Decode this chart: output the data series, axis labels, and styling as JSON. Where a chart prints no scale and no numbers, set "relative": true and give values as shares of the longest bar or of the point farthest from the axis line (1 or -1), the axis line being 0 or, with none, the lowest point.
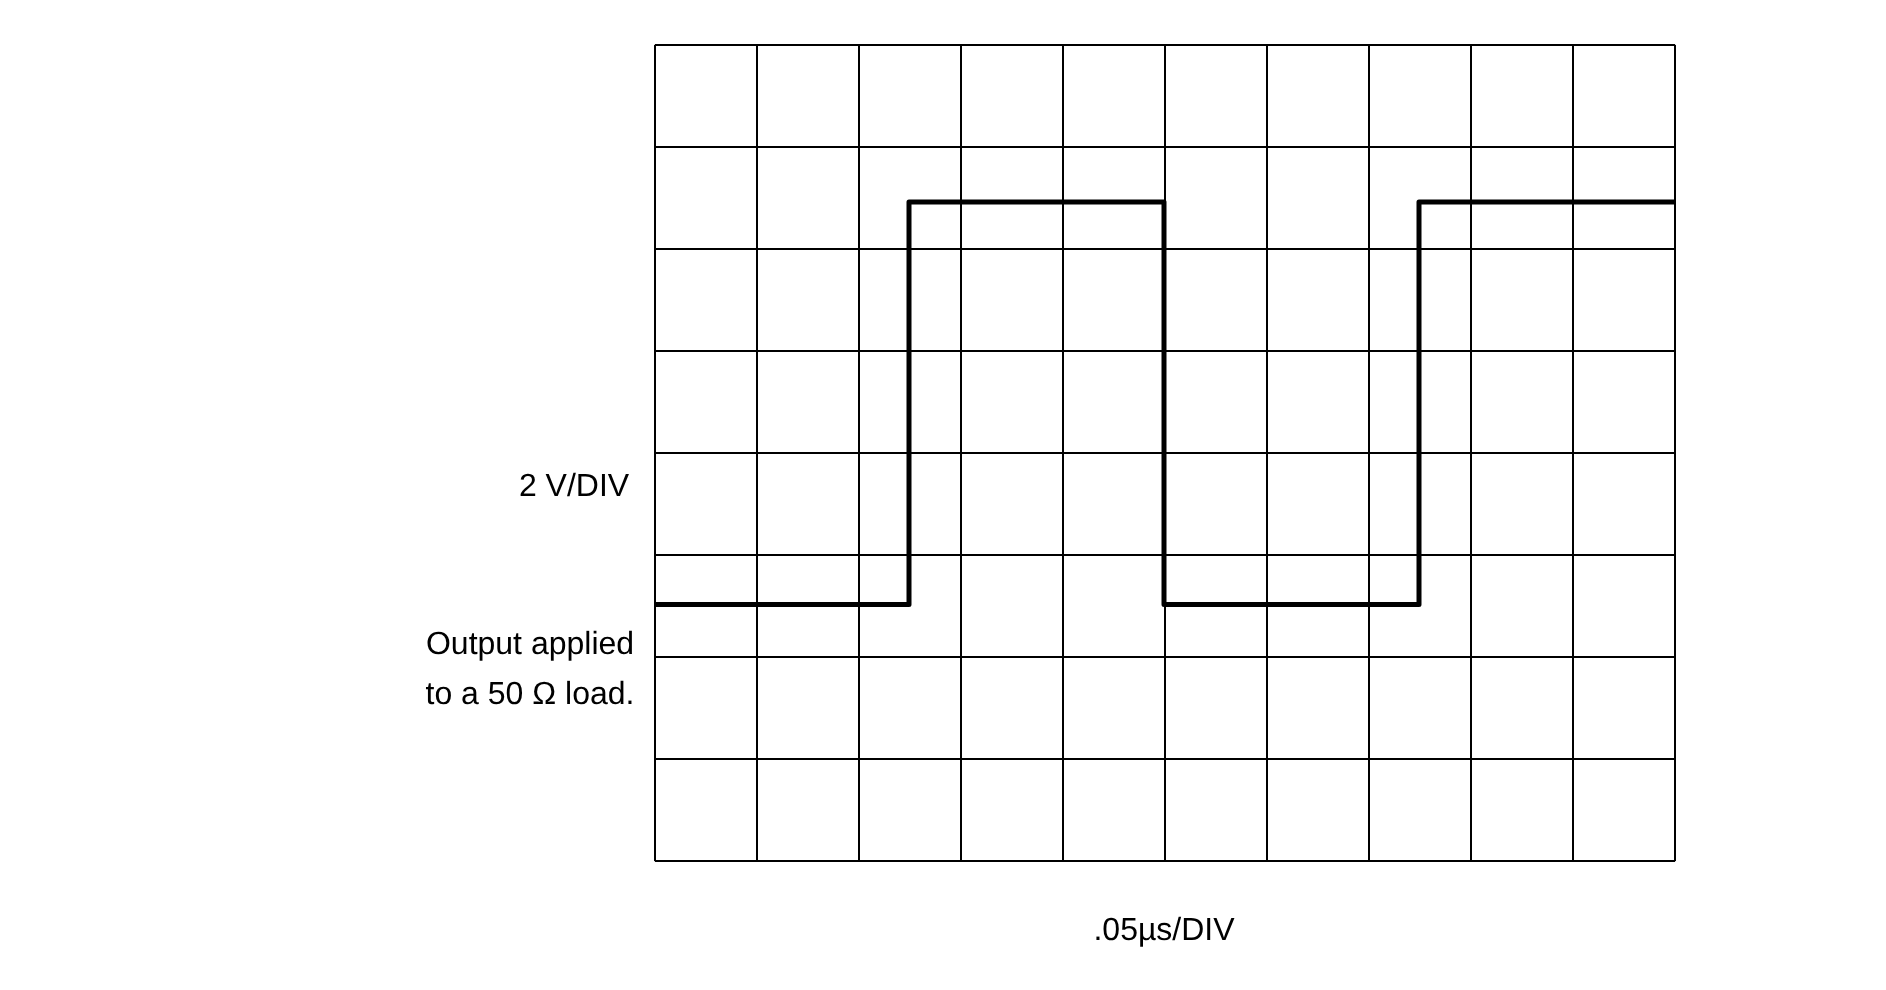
{
  "chart_data": {
    "type": "step",
    "relative": true,
    "ylabel": "2 V/DIV",
    "annotations": [
      "Output applied\nto a 50 Ω load.",
      ".05µs/DIV"
    ],
    "color": "#000000",
    "grid": true,
    "categories": [
      null,
      null,
      null,
      null,
      null,
      null,
      null,
      null,
      null,
      null,
      null,
      null,
      null,
      null,
      null,
      null,
      null,
      null,
      null,
      null,
      null
    ],
    "values": [
      -0.61,
      -0.61,
      -0.61,
      -0.61,
      -0.61,
      1,
      1,
      1,
      1,
      1,
      -0.61,
      -0.61,
      -0.61,
      -0.61,
      -0.61,
      1,
      1,
      1,
      1,
      1,
      1
    ]
  }
}
